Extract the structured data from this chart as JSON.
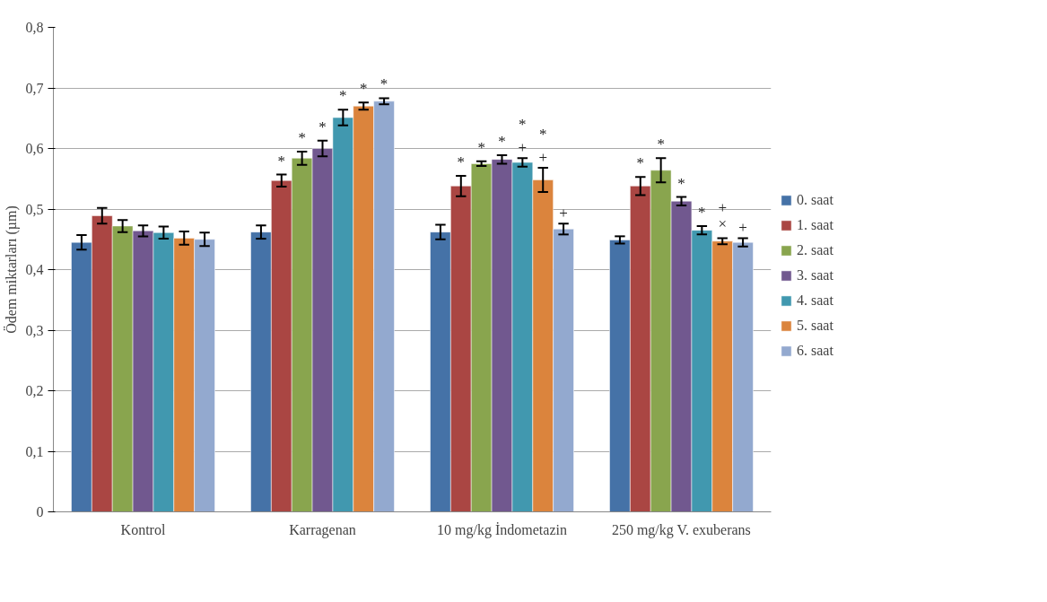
{
  "chart_data": {
    "type": "bar",
    "ylabel": "Ödem miktarları (µm)",
    "categories": [
      "Kontrol",
      "Karragenan",
      "10 mg/kg İndometazin",
      "250 mg/kg V. exuberans"
    ],
    "ylim": [
      0,
      0.8
    ],
    "yticks": [
      0,
      {
        "value": 0.1,
        "label": "0,1"
      },
      {
        "value": 0.2,
        "label": "0,2"
      },
      {
        "value": 0.3,
        "label": "0,3"
      },
      {
        "value": 0.4,
        "label": "0,4"
      },
      {
        "value": 0.5,
        "label": "0,5"
      },
      {
        "value": 0.6,
        "label": "0,6"
      },
      {
        "value": 0.7,
        "label": "0,7"
      },
      {
        "value": 0.8,
        "label": "0,8"
      }
    ],
    "grid": "y",
    "legend": "right",
    "series": [
      {
        "name": "0. saat",
        "color": "#4572a7",
        "values": [
          0.445,
          0.462,
          0.462,
          0.449
        ],
        "errors": [
          0.012,
          0.011,
          0.012,
          0.006
        ],
        "value_labels": [
          null,
          null,
          null,
          null
        ]
      },
      {
        "name": "1. saat",
        "color": "#aa4643",
        "values": [
          0.489,
          0.547,
          0.538,
          0.538
        ],
        "errors": [
          0.013,
          0.01,
          0.017,
          0.015
        ],
        "value_labels": [
          null,
          "*",
          "*",
          "*"
        ]
      },
      {
        "name": "2. saat",
        "color": "#89a54e",
        "values": [
          0.472,
          0.584,
          0.575,
          0.564
        ],
        "errors": [
          0.01,
          0.011,
          0.004,
          0.02
        ],
        "value_labels": [
          null,
          "*",
          "*",
          "*"
        ]
      },
      {
        "name": "3. saat",
        "color": "#71588f",
        "values": [
          0.464,
          0.6,
          0.582,
          0.513
        ],
        "errors": [
          0.009,
          0.013,
          0.007,
          0.007
        ],
        "value_labels": [
          null,
          "*",
          "*",
          "*"
        ]
      },
      {
        "name": "4. saat",
        "color": "#4198af",
        "values": [
          0.461,
          0.651,
          0.577,
          0.465
        ],
        "errors": [
          0.01,
          0.013,
          0.007,
          0.007
        ],
        "value_labels": [
          null,
          "*",
          "*\n+",
          "*"
        ]
      },
      {
        "name": "5. saat",
        "color": "#db843d",
        "values": [
          0.452,
          0.67,
          0.548,
          0.447
        ],
        "errors": [
          0.011,
          0.006,
          0.02,
          0.005
        ],
        "value_labels": [
          null,
          "*",
          "*\n+",
          "+\n×"
        ]
      },
      {
        "name": "6. saat",
        "color": "#93a9cf",
        "values": [
          0.45,
          0.678,
          0.467,
          0.445
        ],
        "errors": [
          0.011,
          0.005,
          0.009,
          0.007
        ],
        "value_labels": [
          null,
          "*",
          "+",
          "+"
        ]
      }
    ]
  }
}
